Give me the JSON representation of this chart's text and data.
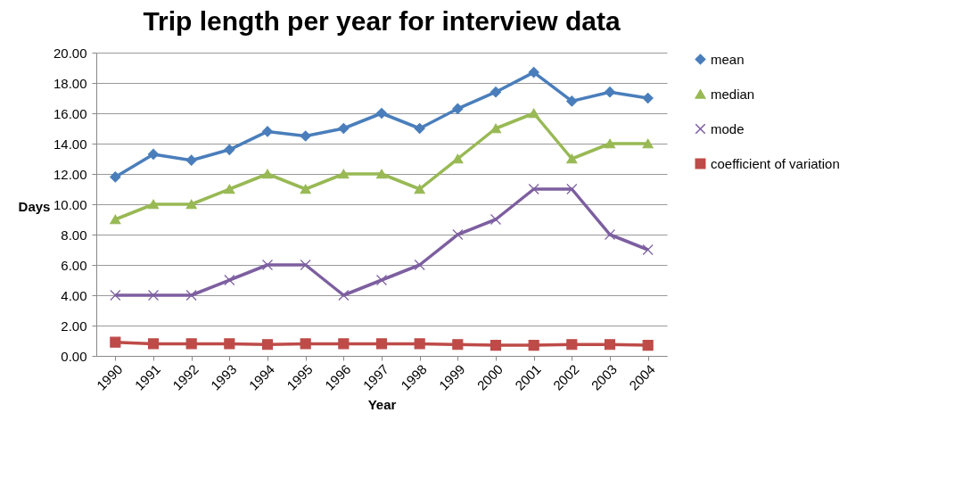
{
  "chart_data": {
    "type": "line",
    "title": "Trip length per year for interview data",
    "xlabel": "Year",
    "ylabel": "Days",
    "categories": [
      "1990",
      "1991",
      "1992",
      "1993",
      "1994",
      "1995",
      "1996",
      "1997",
      "1998",
      "1999",
      "2000",
      "2001",
      "2002",
      "2003",
      "2004"
    ],
    "ylim": [
      0,
      20
    ],
    "yticks": [
      {
        "value": 0,
        "label": "0.00"
      },
      {
        "value": 2,
        "label": "2.00"
      },
      {
        "value": 4,
        "label": "4.00"
      },
      {
        "value": 6,
        "label": "6.00"
      },
      {
        "value": 8,
        "label": "8.00"
      },
      {
        "value": 10,
        "label": "10.00"
      },
      {
        "value": 12,
        "label": "12.00"
      },
      {
        "value": 14,
        "label": "14.00"
      },
      {
        "value": 16,
        "label": "16.00"
      },
      {
        "value": 18,
        "label": "18.00"
      },
      {
        "value": 20,
        "label": "20.00"
      }
    ],
    "grid": "y",
    "legend": "right",
    "series": [
      {
        "name": "mean",
        "color": "#4a7ebb",
        "marker": "diamond",
        "values": [
          11.8,
          13.3,
          12.9,
          13.6,
          14.8,
          14.5,
          15.0,
          16.0,
          15.0,
          16.3,
          17.4,
          18.7,
          16.8,
          17.4,
          17.0
        ]
      },
      {
        "name": "median",
        "color": "#98b954",
        "marker": "triangle",
        "values": [
          9,
          10,
          10,
          11,
          12,
          11,
          12,
          12,
          11,
          13,
          15,
          16,
          13,
          14,
          14
        ]
      },
      {
        "name": "mode",
        "color": "#7d5fa0",
        "marker": "cross",
        "values": [
          4,
          4,
          4,
          5,
          6,
          6,
          4,
          5,
          6,
          8,
          9,
          11,
          11,
          8,
          7
        ]
      },
      {
        "name": "coefficient of variation",
        "color": "#be4b48",
        "marker": "square",
        "values": [
          0.9,
          0.8,
          0.8,
          0.8,
          0.75,
          0.8,
          0.8,
          0.8,
          0.8,
          0.75,
          0.7,
          0.7,
          0.75,
          0.75,
          0.7
        ]
      }
    ]
  }
}
